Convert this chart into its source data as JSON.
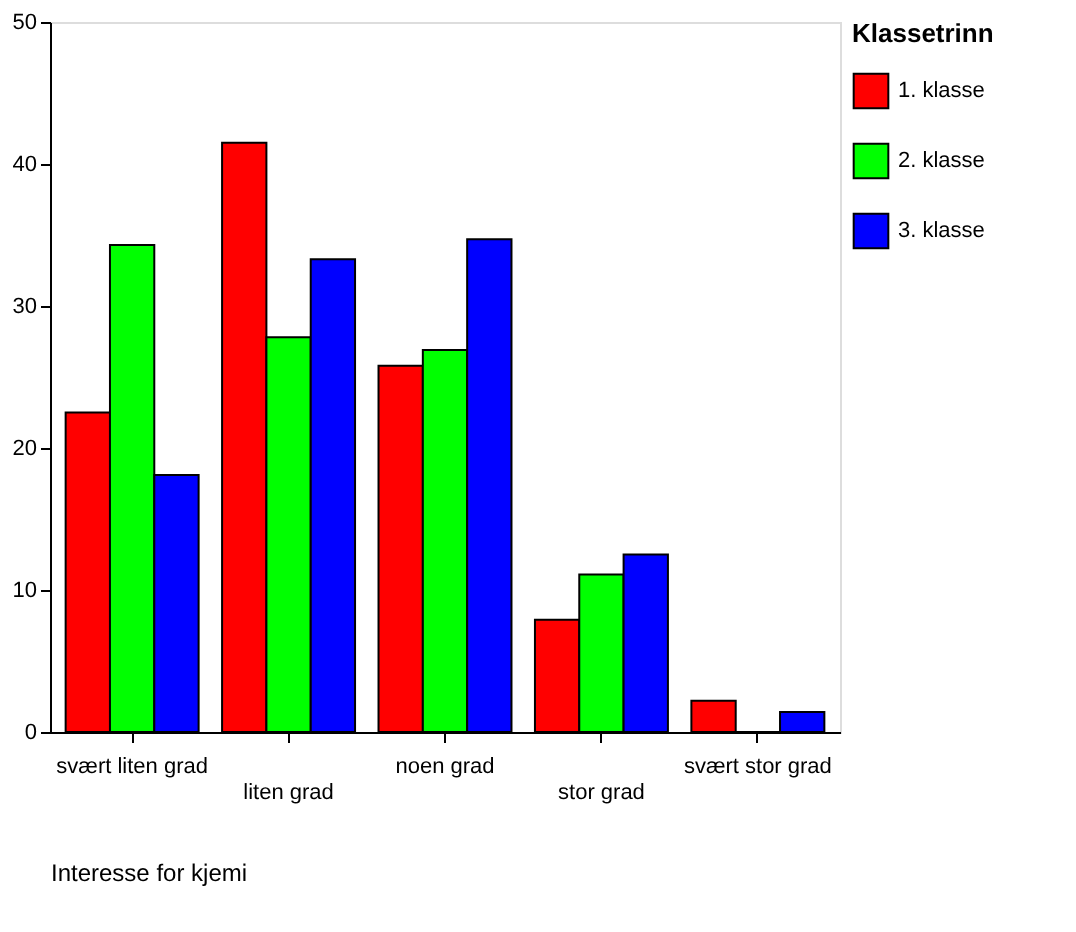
{
  "chart_data": {
    "type": "bar",
    "xlabel": "Interesse for kjemi",
    "legend_title": "Klassetrinn",
    "categories": [
      "svært liten grad",
      "liten grad",
      "noen grad",
      "stor grad",
      "svært stor grad"
    ],
    "series": [
      {
        "name": "1. klasse",
        "color": "#ff0000",
        "values": [
          22.5,
          41.5,
          25.8,
          7.9,
          2.2
        ]
      },
      {
        "name": "2. klasse",
        "color": "#00ff00",
        "values": [
          34.3,
          27.8,
          26.9,
          11.1,
          0
        ]
      },
      {
        "name": "3. klasse",
        "color": "#0000ff",
        "values": [
          18.1,
          33.3,
          34.7,
          12.5,
          1.4
        ]
      }
    ],
    "ylim": [
      0,
      50
    ],
    "yticks": [
      0,
      10,
      20,
      30,
      40,
      50
    ],
    "grid": false,
    "legend": "right"
  }
}
